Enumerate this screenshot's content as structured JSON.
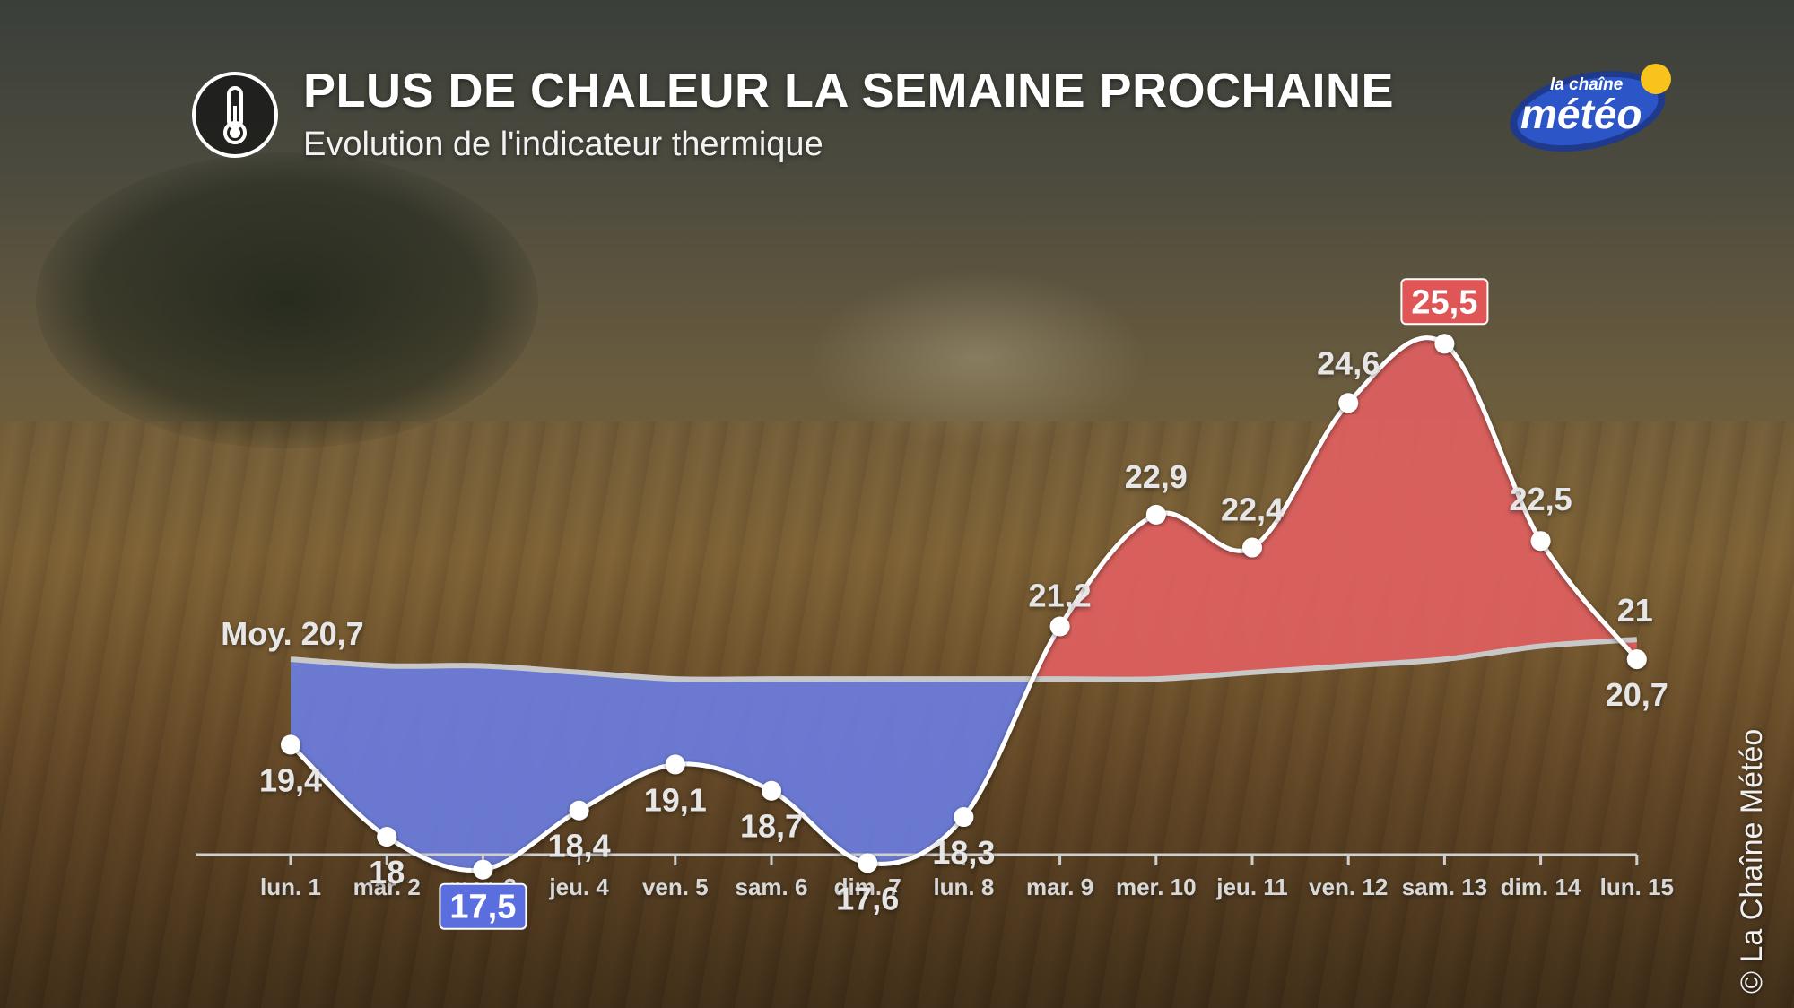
{
  "header": {
    "title": "PLUS DE CHALEUR LA SEMAINE PROCHAINE",
    "subtitle": "Evolution de l'indicateur thermique",
    "icon": "thermometer-icon"
  },
  "logo": {
    "small": "la chaîne",
    "big": "météo",
    "icon": "sun-icon"
  },
  "copyright": "© La Chaîne Météo",
  "chart_data": {
    "type": "area",
    "categories": [
      "lun. 1",
      "mar. 2",
      "mer. 3",
      "jeu. 4",
      "ven. 5",
      "sam. 6",
      "dim. 7",
      "lun. 8",
      "mar. 9",
      "mer. 10",
      "jeu. 11",
      "ven. 12",
      "sam. 13",
      "dim. 14",
      "lun. 15"
    ],
    "values": [
      19.4,
      18,
      17.5,
      18.4,
      19.1,
      18.7,
      17.6,
      18.3,
      21.2,
      22.9,
      22.4,
      24.6,
      25.5,
      22.5,
      20.7
    ],
    "value_labels": [
      "19,4",
      "18",
      "17,5",
      "18,4",
      "19,1",
      "18,7",
      "17,6",
      "18,3",
      "21,2",
      "22,9",
      "22,4",
      "24,6",
      "25,5",
      "22,5",
      "20,7"
    ],
    "normal": [
      20.7,
      20.6,
      20.6,
      20.5,
      20.4,
      20.4,
      20.4,
      20.4,
      20.4,
      20.4,
      20.5,
      20.6,
      20.7,
      20.9,
      21.0
    ],
    "normal_start_label": "Moy. 20,7",
    "normal_end_label": "21",
    "min_highlight": 2,
    "max_highlight": 12,
    "ylim": [
      16.5,
      27
    ],
    "colors": {
      "below": "#6b7de0",
      "above": "#e06060",
      "line": "#ffffff",
      "normal": "#c8c8c8",
      "min_badge": "#5b6ee0",
      "max_badge": "#e05555"
    }
  }
}
